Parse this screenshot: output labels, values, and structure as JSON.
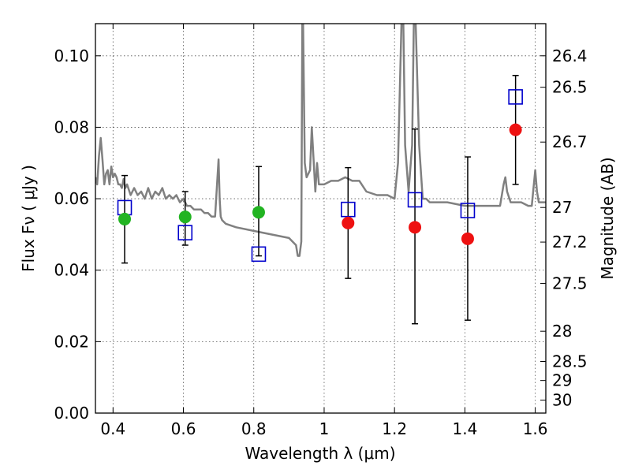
{
  "chart_data": {
    "type": "scatter",
    "xlabel": "Wavelength  λ (μm)",
    "ylabel": "Flux  Fν  ( μJy )",
    "ylabel_right": "Magnitude (AB)",
    "xlim": [
      0.35,
      1.63
    ],
    "ylim": [
      0.0,
      0.109
    ],
    "grid": true,
    "x_ticks": [
      0.4,
      0.6,
      0.8,
      1.0,
      1.2,
      1.4,
      1.6
    ],
    "x_tick_labels": [
      "0.4",
      "0.6",
      "0.8",
      "1",
      "1.2",
      "1.4",
      "1.6"
    ],
    "y_ticks": [
      0.0,
      0.02,
      0.04,
      0.06,
      0.08,
      0.1
    ],
    "y_tick_labels": [
      "0.00",
      "0.02",
      "0.04",
      "0.06",
      "0.08",
      "0.10"
    ],
    "right_ticks": [
      {
        "mag": 26.4,
        "label": "26.4"
      },
      {
        "mag": 26.5,
        "label": "26.5"
      },
      {
        "mag": 26.7,
        "label": "26.7"
      },
      {
        "mag": 27.0,
        "label": "27"
      },
      {
        "mag": 27.2,
        "label": "27.2"
      },
      {
        "mag": 27.5,
        "label": "27.5"
      },
      {
        "mag": 28.0,
        "label": "28"
      },
      {
        "mag": 28.5,
        "label": "28.5"
      },
      {
        "mag": 29.0,
        "label": "29"
      },
      {
        "mag": 30.0,
        "label": "30"
      }
    ],
    "colors": {
      "model_line": "#808080",
      "squares": "#0000cc",
      "green_points": "#22b422",
      "red_points": "#ee1111",
      "errorbars": "#000000",
      "grid": "#555555"
    },
    "series": [
      {
        "kind": "line",
        "x": [
          0.35,
          0.355,
          0.36,
          0.365,
          0.37,
          0.375,
          0.38,
          0.385,
          0.39,
          0.395,
          0.4,
          0.405,
          0.41,
          0.415,
          0.42,
          0.425,
          0.43,
          0.435,
          0.44,
          0.45,
          0.46,
          0.47,
          0.48,
          0.49,
          0.5,
          0.51,
          0.52,
          0.53,
          0.54,
          0.55,
          0.56,
          0.57,
          0.58,
          0.59,
          0.6,
          0.61,
          0.62,
          0.63,
          0.64,
          0.65,
          0.66,
          0.67,
          0.68,
          0.69,
          0.7,
          0.703,
          0.706,
          0.71,
          0.72,
          0.75,
          0.8,
          0.85,
          0.9,
          0.92,
          0.925,
          0.93,
          0.935,
          0.938,
          0.94,
          0.945,
          0.95,
          0.96,
          0.965,
          0.975,
          0.98,
          0.985,
          0.99,
          1.0,
          1.02,
          1.04,
          1.06,
          1.08,
          1.1,
          1.12,
          1.15,
          1.18,
          1.2,
          1.21,
          1.22,
          1.225,
          1.23,
          1.24,
          1.25,
          1.255,
          1.26,
          1.27,
          1.28,
          1.29,
          1.3,
          1.35,
          1.4,
          1.45,
          1.48,
          1.5,
          1.51,
          1.515,
          1.52,
          1.53,
          1.54,
          1.56,
          1.58,
          1.59,
          1.595,
          1.6,
          1.605,
          1.61,
          1.63
        ],
        "y": [
          0.066,
          0.064,
          0.072,
          0.077,
          0.071,
          0.064,
          0.067,
          0.068,
          0.064,
          0.069,
          0.066,
          0.067,
          0.066,
          0.064,
          0.064,
          0.063,
          0.0655,
          0.063,
          0.064,
          0.061,
          0.063,
          0.061,
          0.062,
          0.06,
          0.063,
          0.06,
          0.062,
          0.061,
          0.063,
          0.06,
          0.061,
          0.06,
          0.061,
          0.059,
          0.06,
          0.058,
          0.058,
          0.057,
          0.057,
          0.057,
          0.056,
          0.056,
          0.055,
          0.055,
          0.071,
          0.06,
          0.055,
          0.054,
          0.053,
          0.052,
          0.051,
          0.05,
          0.049,
          0.047,
          0.044,
          0.044,
          0.048,
          0.11,
          0.11,
          0.07,
          0.066,
          0.068,
          0.08,
          0.062,
          0.07,
          0.064,
          0.064,
          0.064,
          0.065,
          0.065,
          0.066,
          0.065,
          0.065,
          0.062,
          0.061,
          0.061,
          0.06,
          0.07,
          0.11,
          0.11,
          0.075,
          0.062,
          0.075,
          0.11,
          0.11,
          0.075,
          0.06,
          0.06,
          0.059,
          0.059,
          0.058,
          0.058,
          0.058,
          0.058,
          0.064,
          0.066,
          0.062,
          0.059,
          0.059,
          0.059,
          0.058,
          0.058,
          0.063,
          0.068,
          0.062,
          0.059,
          0.059
        ]
      },
      {
        "kind": "squares",
        "x": [
          0.433,
          0.605,
          0.814,
          1.068,
          1.258,
          1.408,
          1.544
        ],
        "y": [
          0.0575,
          0.0505,
          0.0445,
          0.057,
          0.0597,
          0.0567,
          0.0885
        ]
      },
      {
        "kind": "errorbars",
        "x": [
          0.433,
          0.605,
          0.814,
          1.068,
          1.258,
          1.408,
          1.544
        ],
        "ylow": [
          0.042,
          0.047,
          0.044,
          0.0377,
          0.025,
          0.026,
          0.064
        ],
        "yhigh": [
          0.0665,
          0.062,
          0.069,
          0.0687,
          0.0795,
          0.0717,
          0.0945
        ]
      },
      {
        "kind": "points",
        "color": "green",
        "x": [
          0.433,
          0.605,
          0.814
        ],
        "y": [
          0.0543,
          0.0549,
          0.0562
        ]
      },
      {
        "kind": "points",
        "color": "red",
        "x": [
          1.068,
          1.258,
          1.408,
          1.544
        ],
        "y": [
          0.0532,
          0.052,
          0.0488,
          0.0793
        ]
      }
    ]
  }
}
